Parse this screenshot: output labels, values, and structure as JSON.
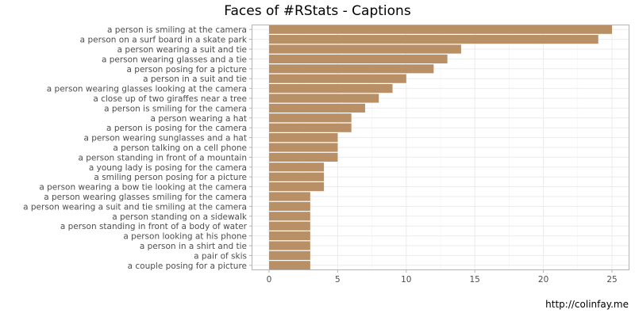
{
  "chart_data": {
    "type": "bar",
    "orientation": "horizontal",
    "title": "Faces of #RStats - Captions",
    "caption": "http://colinfay.me",
    "xlabel": "",
    "ylabel": "",
    "xlim": [
      0,
      26
    ],
    "x_ticks": [
      0,
      5,
      10,
      15,
      20,
      25
    ],
    "grid": true,
    "bar_color": "#b98f66",
    "categories": [
      "a person is smiling at the camera",
      "a person on a surf board in a skate park",
      "a person wearing a suit and tie",
      "a person wearing glasses and a tie",
      "a person posing for a picture",
      "a person in a suit and tie",
      "a person wearing glasses looking at the camera",
      "a close up of two giraffes near a tree",
      "a person is smiling for the camera",
      "a person wearing a hat",
      "a person is posing for the camera",
      "a person wearing sunglasses and a hat",
      "a person talking on a cell phone",
      "a person standing in front of a mountain",
      "a young lady is posing for the camera",
      "a smiling person posing for a picture",
      "a person wearing a bow tie looking at the camera",
      "a person wearing glasses smiling for the camera",
      "a person wearing a suit and tie smiling at the camera",
      "a person standing on a sidewalk",
      "a person standing in front of a body of water",
      "a person looking at his phone",
      "a person in a shirt and tie",
      "a pair of skis",
      "a couple posing for a picture"
    ],
    "values": [
      25,
      24,
      14,
      13,
      12,
      10,
      9,
      8,
      7,
      6,
      6,
      5,
      5,
      5,
      4,
      4,
      4,
      3,
      3,
      3,
      3,
      3,
      3,
      3,
      3
    ]
  }
}
